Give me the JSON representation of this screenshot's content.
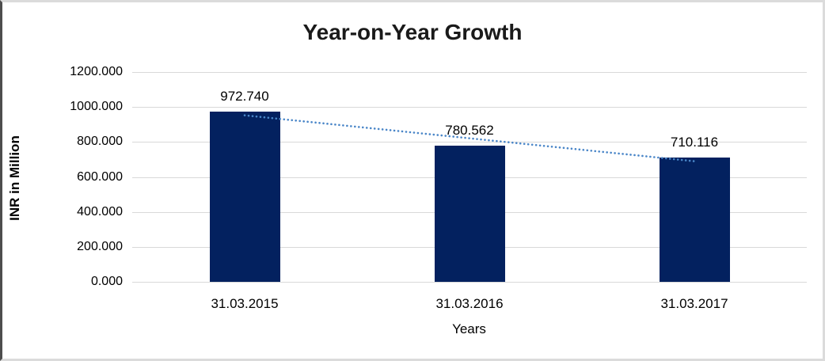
{
  "chart_data": {
    "type": "bar",
    "title": "Year-on-Year Growth",
    "xlabel": "Years",
    "ylabel": "INR in Million",
    "categories": [
      "31.03.2015",
      "31.03.2016",
      "31.03.2017"
    ],
    "values": [
      972.74,
      780.562,
      710.116
    ],
    "data_labels": [
      "972.740",
      "780.562",
      "710.116"
    ],
    "ylim": [
      0,
      1200
    ],
    "ytick_step": 200,
    "ytick_labels": [
      "0.000",
      "200.000",
      "400.000",
      "600.000",
      "800.000",
      "1000.000",
      "1200.000"
    ],
    "grid": true,
    "legend": "none",
    "trendline": {
      "type": "linear",
      "style": "dotted",
      "start_value": 952.4,
      "end_value": 689.8
    },
    "colors": {
      "bar": "#03215f",
      "trendline": "#4a86c8",
      "gridline": "#d9d9d9",
      "title": "#1a1a1a",
      "text": "#000000"
    }
  }
}
